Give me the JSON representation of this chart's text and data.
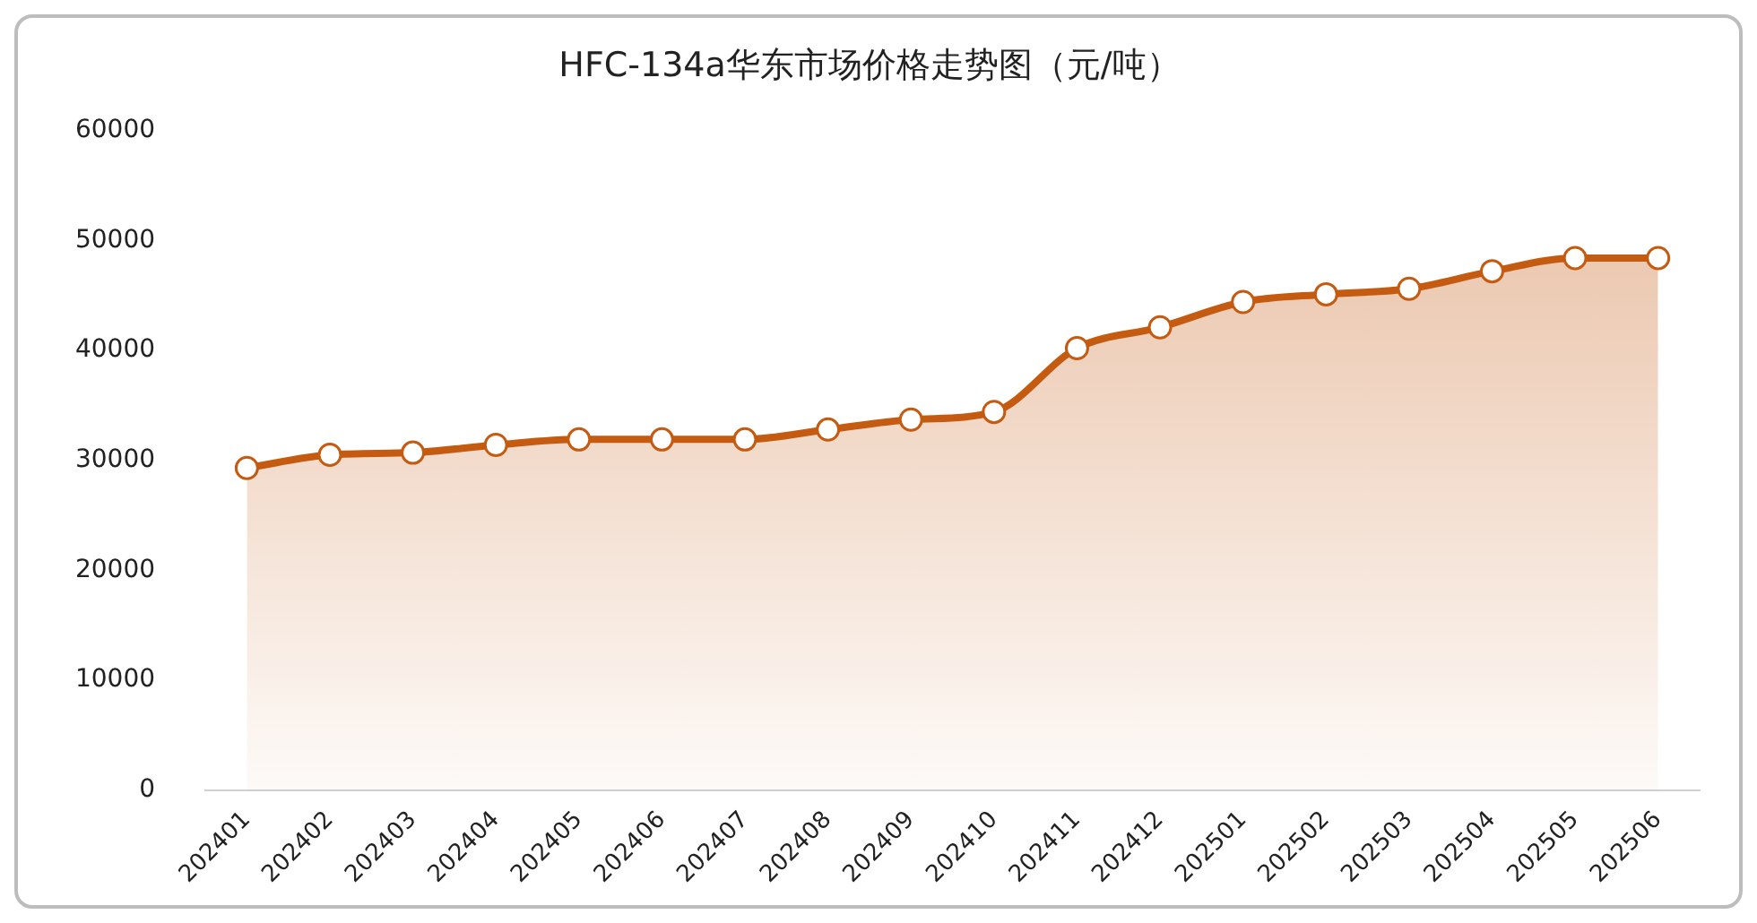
{
  "chart_data": {
    "type": "area",
    "title": "HFC-134a华东市场价格走势图（元/吨）",
    "categories": [
      "202401",
      "202402",
      "202403",
      "202404",
      "202405",
      "202406",
      "202407",
      "202408",
      "202409",
      "202410",
      "202411",
      "202412",
      "202501",
      "202502",
      "202503",
      "202504",
      "202505",
      "202506"
    ],
    "series": [
      {
        "color": "#c55a11",
        "values": [
          29300,
          30500,
          30700,
          31400,
          31900,
          31900,
          31900,
          32800,
          33700,
          34400,
          40200,
          42100,
          44400,
          45100,
          45600,
          47200,
          48400,
          48400
        ]
      }
    ],
    "ylim": [
      0,
      60000
    ],
    "yticks": [
      0,
      10000,
      20000,
      30000,
      40000,
      50000,
      60000
    ],
    "grid": false,
    "legend": false,
    "marker": "circle",
    "line_style": "solid"
  }
}
